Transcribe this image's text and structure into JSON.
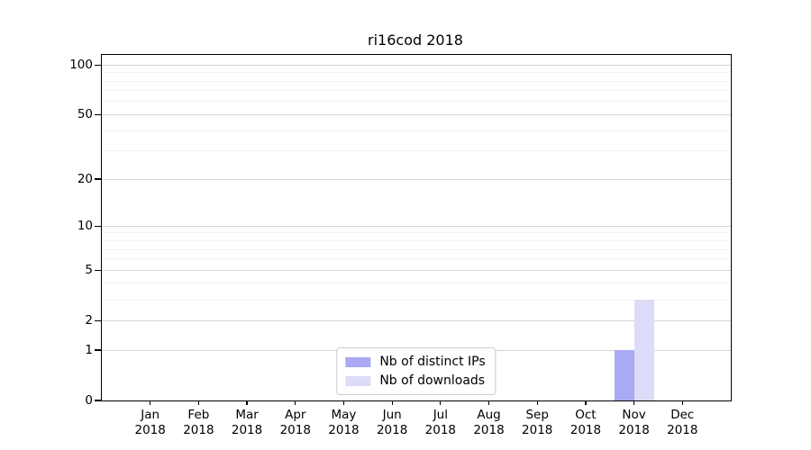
{
  "chart_data": {
    "type": "bar",
    "title": "ri16cod 2018",
    "categories": [
      "Jan",
      "Feb",
      "Mar",
      "Apr",
      "May",
      "Jun",
      "Jul",
      "Aug",
      "Sep",
      "Oct",
      "Nov",
      "Dec"
    ],
    "year": "2018",
    "series": [
      {
        "name": "Nb of distinct IPs",
        "color": "#a9a9f4",
        "values": [
          0,
          0,
          0,
          0,
          0,
          0,
          0,
          0,
          0,
          0,
          1,
          0
        ]
      },
      {
        "name": "Nb of downloads",
        "color": "#dcdcf9",
        "values": [
          0,
          0,
          0,
          0,
          0,
          0,
          0,
          0,
          0,
          0,
          3,
          0
        ]
      }
    ],
    "xlabel": "",
    "ylabel": "",
    "yscale": "log1p",
    "ylim": [
      0,
      115
    ],
    "yticks_major": [
      0,
      1,
      2,
      5,
      10,
      20,
      50,
      100
    ],
    "yticks_minor": [
      3,
      4,
      6,
      7,
      8,
      9,
      30,
      40,
      60,
      70,
      80,
      90
    ],
    "grid": "horizontal",
    "legend_position": "lower center"
  }
}
